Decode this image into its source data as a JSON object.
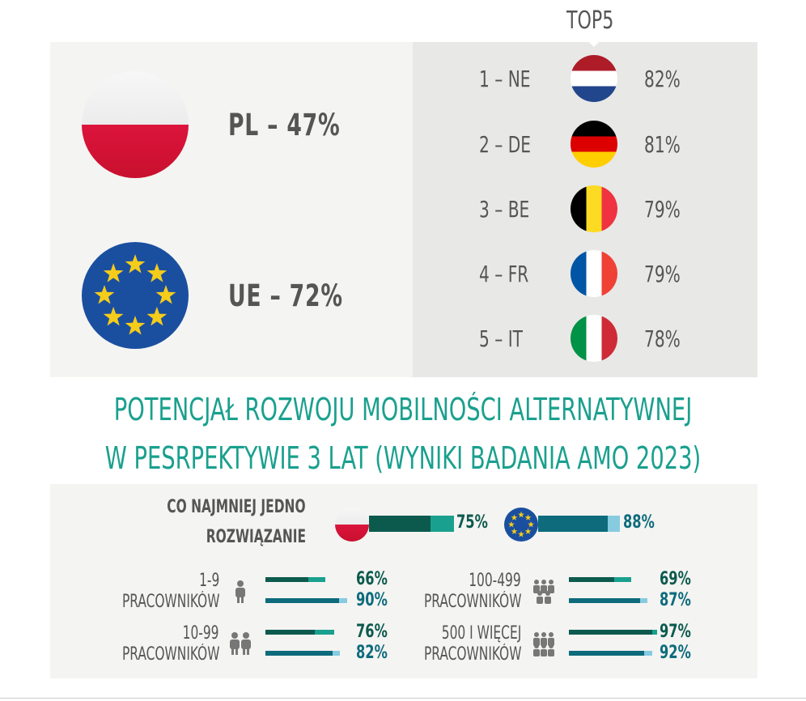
{
  "colors": {
    "teal_dark": "#0c5a4e",
    "teal_light": "#1aa08e",
    "blue_dark": "#0d6b7c",
    "blue_light": "#86cbe0",
    "eu_blue": "#1a4fa0",
    "star": "#f6cc1a"
  },
  "hero": {
    "pl_label": "PL – 47%",
    "eu_label": "UE – 72%"
  },
  "top5": {
    "title": "TOP5",
    "items": [
      {
        "rank": "1 – NE",
        "value": "82%",
        "flag": "netherlands-flag"
      },
      {
        "rank": "2 – DE",
        "value": "81%",
        "flag": "germany-flag"
      },
      {
        "rank": "3 – BE",
        "value": "79%",
        "flag": "belgium-flag"
      },
      {
        "rank": "4 – FR",
        "value": "79%",
        "flag": "france-flag"
      },
      {
        "rank": "5 – IT",
        "value": "78%",
        "flag": "italy-flag"
      }
    ]
  },
  "title": {
    "line1": "POTENCJAŁ ROZWOJU MOBILNOŚCI ALTERNATYWNEJ",
    "line2": "W PESRPEKTYWIE 3 LAT (WYNIKI BADANIA AMO 2023)"
  },
  "bottom": {
    "main_label_line1": "CO NAJMNIEJ JEDNO",
    "main_label_line2": "ROZWIĄZANIE",
    "main_pl": {
      "value": "75%",
      "fraction": 0.75
    },
    "main_eu": {
      "value": "88%",
      "fraction": 0.88
    },
    "groups": [
      {
        "line1": "1-9",
        "line2": "PRACOWNIKÓW",
        "icon": "person-icon",
        "pl": {
          "value": "66%",
          "fraction": 0.66
        },
        "eu": {
          "value": "90%",
          "fraction": 0.9
        }
      },
      {
        "line1": "10-99",
        "line2": "PRACOWNIKÓW",
        "icon": "two-people-icon",
        "pl": {
          "value": "76%",
          "fraction": 0.76
        },
        "eu": {
          "value": "82%",
          "fraction": 0.82
        }
      },
      {
        "line1": "100-499",
        "line2": "PRACOWNIKÓW",
        "icon": "group-icon",
        "pl": {
          "value": "69%",
          "fraction": 0.69
        },
        "eu": {
          "value": "87%",
          "fraction": 0.87
        }
      },
      {
        "line1": "500 I WIĘCEJ",
        "line2": "PRACOWNIKÓW",
        "icon": "large-group-icon",
        "pl": {
          "value": "97%",
          "fraction": 0.97
        },
        "eu": {
          "value": "92%",
          "fraction": 0.92
        }
      }
    ]
  }
}
